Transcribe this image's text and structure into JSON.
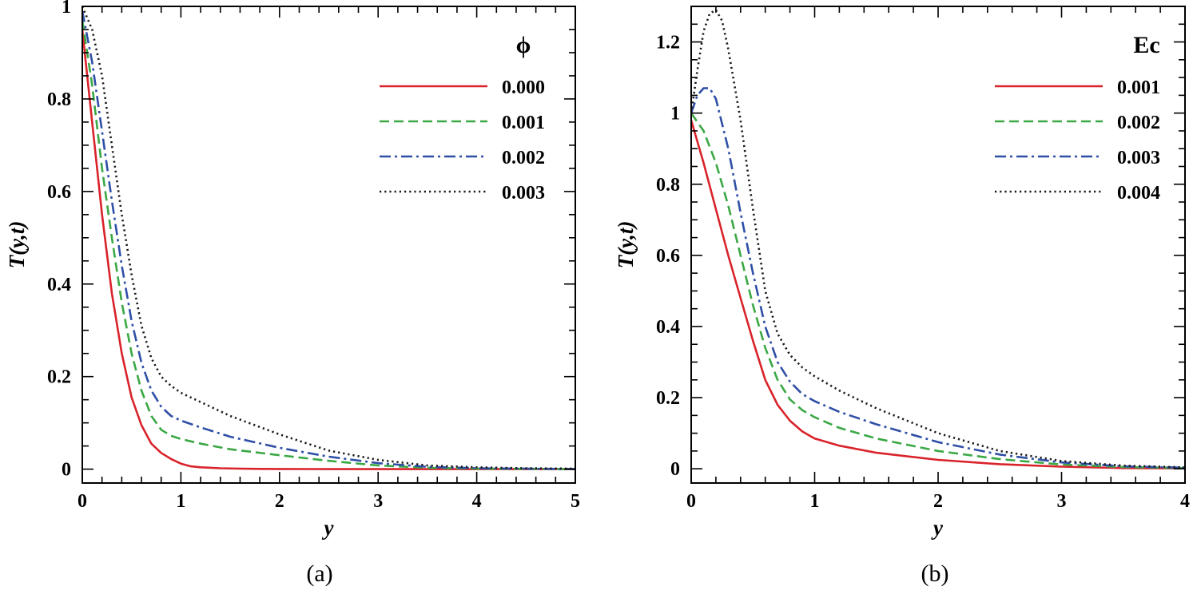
{
  "chart_data": [
    {
      "type": "line",
      "caption": "(a)",
      "xlabel": "y",
      "ylabel": "T(y,t)",
      "xlim": [
        0,
        5
      ],
      "ylim": [
        -0.03,
        1.0
      ],
      "xticks": [
        0,
        1,
        2,
        3,
        4,
        5
      ],
      "yticks": [
        0,
        0.2,
        0.4,
        0.6,
        0.8,
        1
      ],
      "xtick_labels": [
        "0",
        "1",
        "2",
        "3",
        "4",
        "5"
      ],
      "ytick_labels": [
        "0",
        "0.2",
        "0.4",
        "0.6",
        "0.8",
        "1"
      ],
      "legend_title": "ϕ",
      "legend_position": "top-right",
      "series": [
        {
          "name": "0.000",
          "color": "#d9232b",
          "style": "solid",
          "x": [
            0,
            0.1,
            0.2,
            0.3,
            0.4,
            0.5,
            0.6,
            0.7,
            0.8,
            0.9,
            1.0,
            1.1,
            1.2,
            1.4,
            1.6,
            1.8,
            2.0,
            2.5,
            3.0,
            3.5,
            4.0,
            4.5,
            5.0
          ],
          "y": [
            0.95,
            0.75,
            0.55,
            0.38,
            0.25,
            0.155,
            0.095,
            0.055,
            0.035,
            0.022,
            0.012,
            0.006,
            0.004,
            0.002,
            0.001,
            0.0005,
            0.0003,
            0,
            0,
            0,
            0,
            0,
            0
          ]
        },
        {
          "name": "0.001",
          "color": "#3aa844",
          "style": "dashed",
          "x": [
            0,
            0.1,
            0.2,
            0.3,
            0.4,
            0.5,
            0.6,
            0.7,
            0.8,
            0.9,
            1.0,
            1.2,
            1.5,
            2.0,
            2.5,
            3.0,
            3.5,
            4.0,
            4.5,
            5.0
          ],
          "y": [
            0.97,
            0.83,
            0.65,
            0.5,
            0.36,
            0.25,
            0.17,
            0.115,
            0.085,
            0.072,
            0.065,
            0.055,
            0.043,
            0.03,
            0.018,
            0.008,
            0.003,
            0.001,
            0.0005,
            0
          ]
        },
        {
          "name": "0.002",
          "color": "#2f4fa6",
          "style": "dashdot",
          "x": [
            0,
            0.1,
            0.2,
            0.3,
            0.4,
            0.5,
            0.6,
            0.7,
            0.8,
            0.9,
            1.0,
            1.2,
            1.5,
            2.0,
            2.5,
            3.0,
            3.5,
            4.0,
            4.5,
            5.0
          ],
          "y": [
            0.99,
            0.88,
            0.73,
            0.58,
            0.44,
            0.32,
            0.23,
            0.17,
            0.135,
            0.115,
            0.105,
            0.09,
            0.07,
            0.046,
            0.027,
            0.013,
            0.005,
            0.002,
            0.001,
            0
          ]
        },
        {
          "name": "0.003",
          "color": "#1a1a1a",
          "style": "dotted",
          "x": [
            0,
            0.1,
            0.2,
            0.3,
            0.4,
            0.5,
            0.6,
            0.7,
            0.8,
            0.9,
            1.0,
            1.2,
            1.5,
            2.0,
            2.5,
            3.0,
            3.5,
            4.0,
            4.5,
            5.0
          ],
          "y": [
            1.0,
            0.95,
            0.85,
            0.7,
            0.55,
            0.42,
            0.31,
            0.24,
            0.2,
            0.18,
            0.165,
            0.145,
            0.115,
            0.075,
            0.04,
            0.02,
            0.008,
            0.004,
            0.002,
            0.001
          ]
        }
      ]
    },
    {
      "type": "line",
      "caption": "(b)",
      "xlabel": "y",
      "ylabel": "T(y,t)",
      "xlim": [
        0,
        4
      ],
      "ylim": [
        -0.04,
        1.3
      ],
      "xticks": [
        0,
        1,
        2,
        3,
        4
      ],
      "yticks": [
        0,
        0.2,
        0.4,
        0.6,
        0.8,
        1,
        1.2
      ],
      "xtick_labels": [
        "0",
        "1",
        "2",
        "3",
        "4"
      ],
      "ytick_labels": [
        "0",
        "0.2",
        "0.4",
        "0.6",
        "0.8",
        "1",
        "1.2"
      ],
      "legend_title": "Ec",
      "legend_position": "top-right",
      "series": [
        {
          "name": "0.001",
          "color": "#d9232b",
          "style": "solid",
          "x": [
            0,
            0.1,
            0.2,
            0.3,
            0.4,
            0.5,
            0.6,
            0.7,
            0.8,
            0.9,
            1.0,
            1.2,
            1.5,
            2.0,
            2.5,
            3.0,
            3.5,
            4.0
          ],
          "y": [
            0.98,
            0.86,
            0.73,
            0.6,
            0.48,
            0.36,
            0.25,
            0.18,
            0.135,
            0.105,
            0.085,
            0.065,
            0.045,
            0.025,
            0.013,
            0.006,
            0.002,
            0.001
          ]
        },
        {
          "name": "0.002",
          "color": "#3aa844",
          "style": "dashed",
          "x": [
            0,
            0.1,
            0.2,
            0.3,
            0.4,
            0.5,
            0.6,
            0.7,
            0.8,
            0.9,
            1.0,
            1.2,
            1.5,
            2.0,
            2.5,
            3.0,
            3.5,
            4.0
          ],
          "y": [
            1.0,
            0.95,
            0.86,
            0.74,
            0.6,
            0.46,
            0.34,
            0.25,
            0.195,
            0.165,
            0.145,
            0.115,
            0.085,
            0.05,
            0.027,
            0.012,
            0.005,
            0.002
          ]
        },
        {
          "name": "0.003",
          "color": "#2f4fa6",
          "style": "dashdot",
          "x": [
            0,
            0.05,
            0.1,
            0.15,
            0.2,
            0.3,
            0.4,
            0.5,
            0.6,
            0.7,
            0.8,
            0.9,
            1.0,
            1.2,
            1.5,
            2.0,
            2.5,
            3.0,
            3.5,
            4.0
          ],
          "y": [
            1.0,
            1.05,
            1.07,
            1.07,
            1.04,
            0.9,
            0.72,
            0.55,
            0.4,
            0.3,
            0.245,
            0.21,
            0.19,
            0.16,
            0.125,
            0.075,
            0.04,
            0.018,
            0.007,
            0.003
          ]
        },
        {
          "name": "0.004",
          "color": "#1a1a1a",
          "style": "dotted",
          "x": [
            0,
            0.05,
            0.1,
            0.15,
            0.2,
            0.25,
            0.3,
            0.4,
            0.5,
            0.6,
            0.7,
            0.8,
            0.9,
            1.0,
            1.2,
            1.5,
            2.0,
            2.5,
            3.0,
            3.5,
            4.0
          ],
          "y": [
            1.0,
            1.12,
            1.23,
            1.28,
            1.29,
            1.26,
            1.18,
            0.98,
            0.73,
            0.5,
            0.38,
            0.32,
            0.285,
            0.26,
            0.22,
            0.17,
            0.1,
            0.05,
            0.022,
            0.009,
            0.004
          ]
        }
      ]
    }
  ]
}
